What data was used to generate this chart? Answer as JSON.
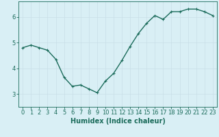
{
  "x": [
    0,
    1,
    2,
    3,
    4,
    5,
    6,
    7,
    8,
    9,
    10,
    11,
    12,
    13,
    14,
    15,
    16,
    17,
    18,
    19,
    20,
    21,
    22,
    23
  ],
  "y": [
    4.8,
    4.9,
    4.8,
    4.7,
    4.35,
    3.65,
    3.3,
    3.35,
    3.2,
    3.05,
    3.5,
    3.8,
    4.3,
    4.85,
    5.35,
    5.75,
    6.05,
    5.9,
    6.2,
    6.2,
    6.3,
    6.3,
    6.2,
    6.05
  ],
  "xlabel": "Humidex (Indice chaleur)",
  "ylim": [
    2.5,
    6.6
  ],
  "xlim": [
    -0.5,
    23.5
  ],
  "yticks": [
    3,
    4,
    5,
    6
  ],
  "xticks": [
    0,
    1,
    2,
    3,
    4,
    5,
    6,
    7,
    8,
    9,
    10,
    11,
    12,
    13,
    14,
    15,
    16,
    17,
    18,
    19,
    20,
    21,
    22,
    23
  ],
  "line_color": "#1a6b5a",
  "marker": "+",
  "bg_color": "#d9eff5",
  "grid_color": "#c8dfe8",
  "axis_color": "#1a6b5a",
  "tick_label_color": "#1a6b5a",
  "xlabel_color": "#1a6b5a",
  "xlabel_fontsize": 7,
  "tick_fontsize": 6,
  "linewidth": 1.0,
  "markersize": 3
}
